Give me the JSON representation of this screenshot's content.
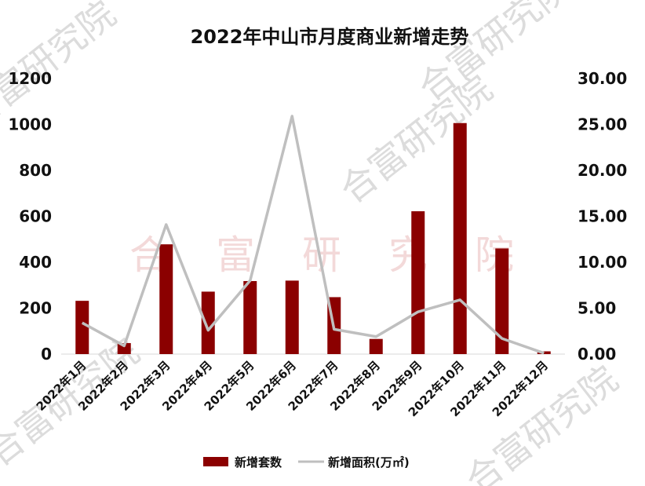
{
  "chart_data": {
    "type": "bar+line",
    "title": "2022年中山市月度商业新增走势",
    "categories": [
      "2022年1月",
      "2022年2月",
      "2022年3月",
      "2022年4月",
      "2022年5月",
      "2022年6月",
      "2022年7月",
      "2022年8月",
      "2022年9月",
      "2022年10月",
      "2022年11月",
      "2022年12月"
    ],
    "series": [
      {
        "name": "新增套数",
        "type": "bar",
        "axis": "left",
        "values": [
          232,
          48,
          478,
          272,
          318,
          320,
          248,
          66,
          622,
          1006,
          460,
          12
        ]
      },
      {
        "name": "新增面积(万㎡)",
        "type": "line",
        "axis": "right",
        "values": [
          3.4,
          0.9,
          14.1,
          2.6,
          8.0,
          25.9,
          2.7,
          1.9,
          4.6,
          5.9,
          1.7,
          0.1
        ]
      }
    ],
    "y_left": {
      "ylim": [
        0,
        1200
      ],
      "ticks": [
        "0",
        "200",
        "400",
        "600",
        "800",
        "1000",
        "1200"
      ]
    },
    "y_right": {
      "ylim": [
        0,
        30
      ],
      "ticks": [
        "0.00",
        "5.00",
        "10.00",
        "15.00",
        "20.00",
        "25.00",
        "30.00"
      ]
    },
    "grid": false,
    "legend_position": "bottom",
    "colors": {
      "bar": "#8b0000",
      "line": "#bfbfbf"
    }
  },
  "watermark": {
    "text": "合富研究院",
    "chars": [
      "合",
      "富",
      "研",
      "究",
      "院"
    ]
  }
}
